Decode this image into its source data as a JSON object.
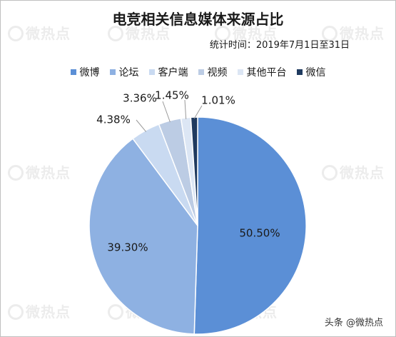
{
  "chart_data": {
    "type": "pie",
    "title": "电竞相关信息媒体来源占比",
    "subtitle": "统计时间：2019年7月1日至31日",
    "categories": [
      "微博",
      "论坛",
      "客户端",
      "视频",
      "其他平台",
      "微信"
    ],
    "values": [
      50.5,
      39.3,
      4.38,
      3.36,
      1.45,
      1.01
    ],
    "value_labels": [
      "50.50%",
      "39.30%",
      "4.38%",
      "3.36%",
      "1.45%",
      "1.01%"
    ],
    "colors": [
      "#5B8FD6",
      "#8EB1E2",
      "#C9DAF1",
      "#BCCCE4",
      "#DCE6F4",
      "#1F3A5F"
    ],
    "legend_position": "top",
    "start_angle": "12 o'clock",
    "direction": "clockwise"
  },
  "watermark": "微热点",
  "footer": "头条 @微热点"
}
